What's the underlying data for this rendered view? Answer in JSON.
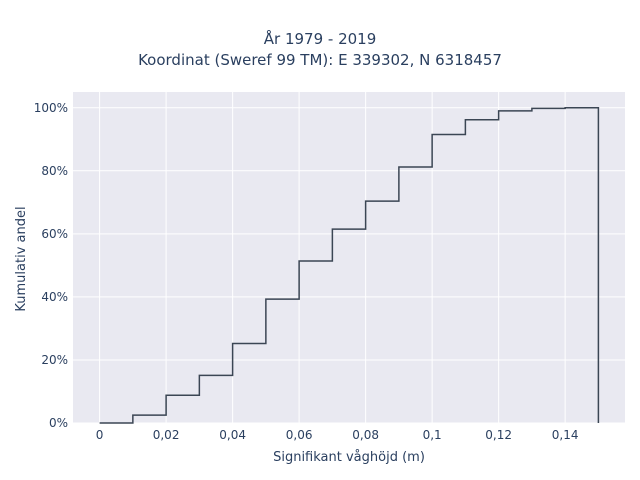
{
  "chart_data": {
    "type": "line",
    "title_lines": [
      "År 1979 - 2019",
      "Koordinat (Sweref 99 TM): E 339302, N 6318457"
    ],
    "xlabel": "Signifikant våghöjd (m)",
    "ylabel": "Kumulativ andel",
    "xlim": [
      -0.008,
      0.158
    ],
    "ylim": [
      0,
      1.05
    ],
    "x_ticks": [
      0,
      0.02,
      0.04,
      0.06,
      0.08,
      0.1,
      0.12,
      0.14
    ],
    "x_tick_labels": [
      "0",
      "0,02",
      "0,04",
      "0,06",
      "0,08",
      "0,1",
      "0,12",
      "0,14"
    ],
    "y_ticks": [
      0,
      0.2,
      0.4,
      0.6,
      0.8,
      1.0
    ],
    "y_tick_labels": [
      "0%",
      "20%",
      "40%",
      "60%",
      "80%",
      "100%"
    ],
    "grid": true,
    "series": [
      {
        "line_shape": "step-after",
        "x": [
          0,
          0.01,
          0.02,
          0.03,
          0.04,
          0.05,
          0.06,
          0.07,
          0.08,
          0.09,
          0.1,
          0.11,
          0.12,
          0.13,
          0.14,
          0.15,
          0.15
        ],
        "y": [
          0,
          0.025,
          0.088,
          0.151,
          0.252,
          0.393,
          0.514,
          0.615,
          0.704,
          0.812,
          0.915,
          0.962,
          0.99,
          0.998,
          1.0,
          1.0,
          0
        ]
      }
    ],
    "colors": {
      "line": "#3b4654",
      "plot_bg": "#e9e9f1",
      "grid": "#ffffff",
      "text": "#2a3f5f"
    }
  }
}
